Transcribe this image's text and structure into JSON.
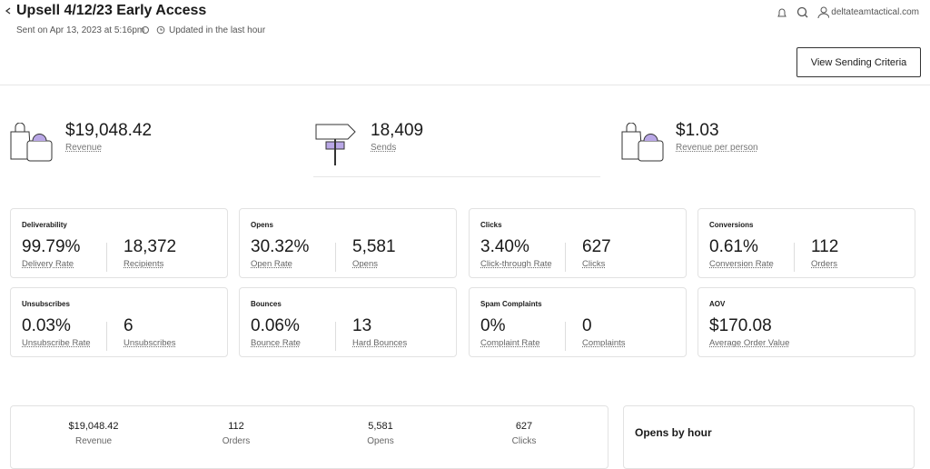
{
  "header": {
    "title": "Upsell 4/12/23 Early Access",
    "sent": "Sent on Apr 13, 2023 at 5:16pm",
    "updated": "Updated in the last hour",
    "account": "deltateamtactical.com",
    "button": "View Sending Criteria"
  },
  "summary": [
    {
      "value": "$19,048.42",
      "label": "Revenue"
    },
    {
      "value": "18,409",
      "label": "Sends"
    },
    {
      "value": "$1.03",
      "label": "Revenue per person"
    }
  ],
  "cards": [
    {
      "title": "Deliverability",
      "metrics": [
        {
          "value": "99.79%",
          "label": "Delivery Rate"
        },
        {
          "value": "18,372",
          "label": "Recipients"
        }
      ]
    },
    {
      "title": "Opens",
      "metrics": [
        {
          "value": "30.32%",
          "label": "Open Rate"
        },
        {
          "value": "5,581",
          "label": "Opens"
        }
      ]
    },
    {
      "title": "Clicks",
      "metrics": [
        {
          "value": "3.40%",
          "label": "Click-through Rate"
        },
        {
          "value": "627",
          "label": "Clicks"
        }
      ]
    },
    {
      "title": "Conversions",
      "metrics": [
        {
          "value": "0.61%",
          "label": "Conversion Rate"
        },
        {
          "value": "112",
          "label": "Orders"
        }
      ]
    },
    {
      "title": "Unsubscribes",
      "metrics": [
        {
          "value": "0.03%",
          "label": "Unsubscribe Rate"
        },
        {
          "value": "6",
          "label": "Unsubscribes"
        }
      ]
    },
    {
      "title": "Bounces",
      "metrics": [
        {
          "value": "0.06%",
          "label": "Bounce Rate"
        },
        {
          "value": "13",
          "label": "Hard Bounces"
        }
      ]
    },
    {
      "title": "Spam Complaints",
      "metrics": [
        {
          "value": "0%",
          "label": "Complaint Rate"
        },
        {
          "value": "0",
          "label": "Complaints"
        }
      ]
    },
    {
      "title": "AOV",
      "metrics": [
        {
          "value": "$170.08",
          "label": "Average Order Value"
        }
      ]
    }
  ],
  "totals": [
    {
      "value": "$19,048.42",
      "label": "Revenue"
    },
    {
      "value": "112",
      "label": "Orders"
    },
    {
      "value": "5,581",
      "label": "Opens"
    },
    {
      "value": "627",
      "label": "Clicks"
    }
  ],
  "side_panel": {
    "title": "Opens by hour"
  }
}
